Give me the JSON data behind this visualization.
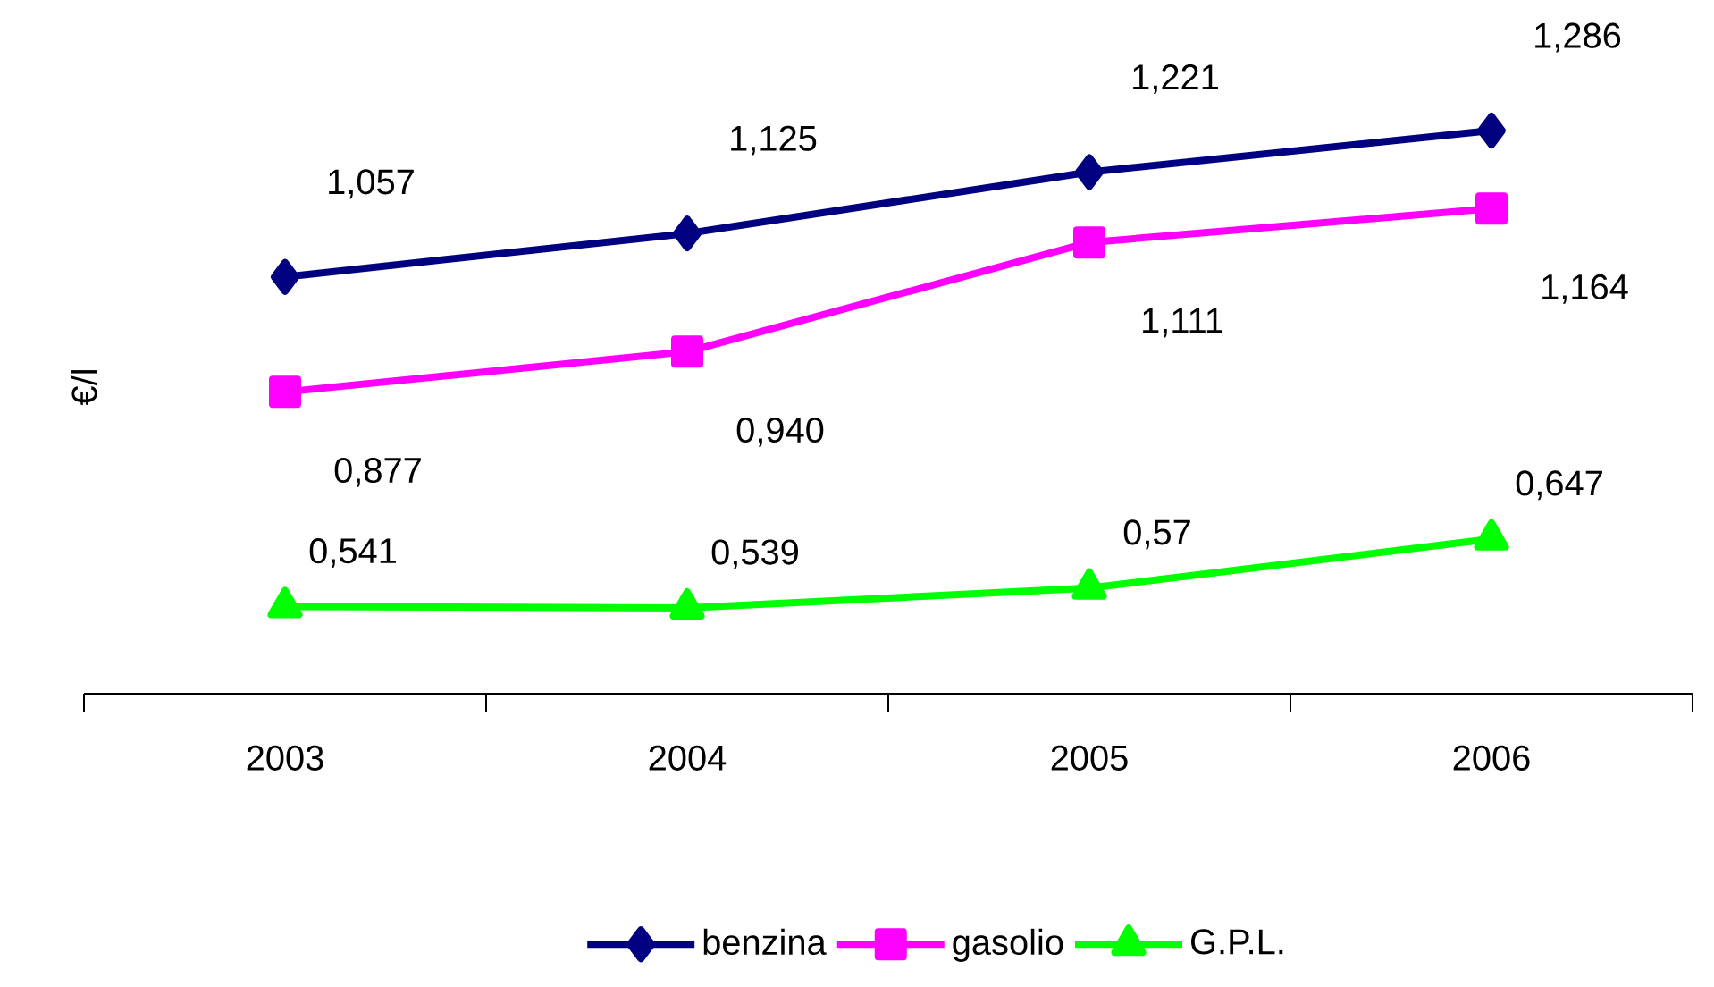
{
  "chart_data": {
    "type": "line",
    "ylabel": "€/l",
    "categories": [
      "2003",
      "2004",
      "2005",
      "2006"
    ],
    "series": [
      {
        "name": "benzina",
        "color": "#000080",
        "marker": "diamond",
        "values": [
          1.057,
          1.125,
          1.221,
          1.286
        ],
        "value_labels": [
          "1,057",
          "1,125",
          "1,221",
          "1,286"
        ]
      },
      {
        "name": "gasolio",
        "color": "#ff00ff",
        "marker": "square",
        "values": [
          0.877,
          0.94,
          1.111,
          1.164
        ],
        "value_labels": [
          "0,877",
          "0,940",
          "1,111",
          "1,164"
        ]
      },
      {
        "name": "G.P.L.",
        "color": "#00ff00",
        "marker": "triangle",
        "values": [
          0.541,
          0.539,
          0.57,
          0.647
        ],
        "value_labels": [
          "0,541",
          "0,539",
          "0,57",
          "0,647"
        ]
      }
    ],
    "tick_labels": "x",
    "legend": "bottom",
    "line_style": "solid"
  }
}
